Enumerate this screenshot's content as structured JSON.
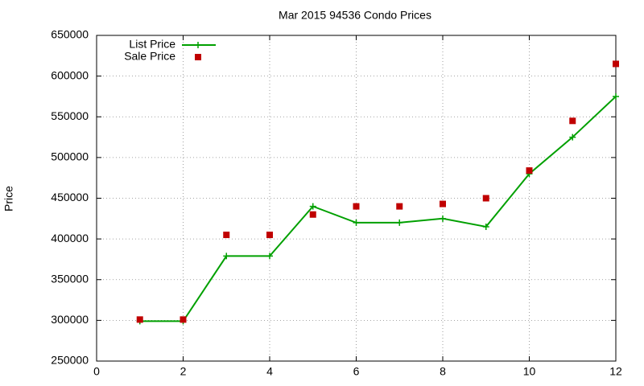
{
  "chart_data": {
    "type": "line",
    "title": "Mar 2015 94536 Condo Prices",
    "y_label": "Price",
    "x": [
      1,
      2,
      3,
      4,
      5,
      6,
      7,
      8,
      9,
      10,
      11,
      12
    ],
    "series": [
      {
        "name": "List Price",
        "color": "#00a000",
        "mode": "lines+points",
        "values": [
          299000,
          299000,
          379000,
          379000,
          440000,
          420000,
          420000,
          425000,
          415000,
          480000,
          525000,
          575000
        ]
      },
      {
        "name": "Sale Price",
        "color": "#c00000",
        "mode": "points",
        "values": [
          301000,
          301000,
          405000,
          405000,
          430000,
          440000,
          440000,
          443000,
          450000,
          484000,
          545000,
          615000
        ]
      }
    ],
    "xlim": [
      0,
      12
    ],
    "xticks": [
      0,
      2,
      4,
      6,
      8,
      10,
      12
    ],
    "ylim": [
      250000,
      650000
    ],
    "yticks": [
      250000,
      300000,
      350000,
      400000,
      450000,
      500000,
      550000,
      600000,
      650000
    ],
    "grid": true,
    "legend": "top-left"
  }
}
